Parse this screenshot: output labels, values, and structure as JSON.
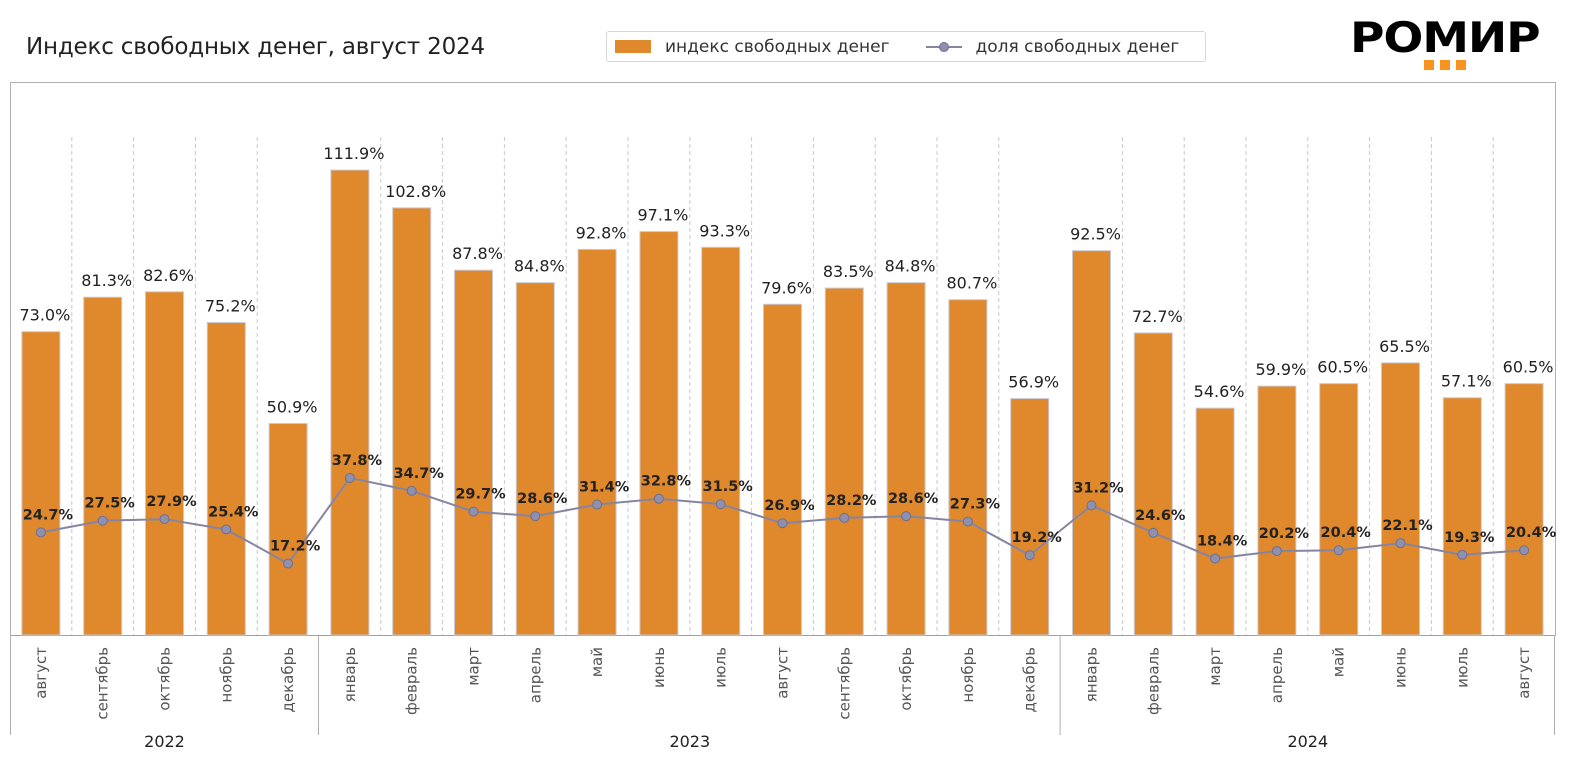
{
  "header": {
    "title": "Индекс свободных денег, август 2024",
    "logo_text": "РОМИР"
  },
  "legend": {
    "bar_label": "индекс свободных денег",
    "line_label": "доля свободных денег"
  },
  "colors": {
    "bar": "#E0882C",
    "bar_edge": "#c9c9d4",
    "line": "#8585A3",
    "marker": "#8f90ad",
    "logo_accent": "#F7931E"
  },
  "chart_data": {
    "type": "bar",
    "title": "Индекс свободных денег, август 2024",
    "xlabel": "",
    "ylabel": "",
    "legend_position": "top-center",
    "grid": "vertical dashed separators between categories",
    "categories": [
      "август",
      "сентябрь",
      "октябрь",
      "ноябрь",
      "декабрь",
      "январь",
      "февраль",
      "март",
      "апрель",
      "май",
      "июнь",
      "июль",
      "август",
      "сентябрь",
      "октябрь",
      "ноябрь",
      "декабрь",
      "январь",
      "февраль",
      "март",
      "апрель",
      "май",
      "июнь",
      "июль",
      "август"
    ],
    "year_groups": [
      {
        "label": "2022",
        "count": 5
      },
      {
        "label": "2023",
        "count": 12
      },
      {
        "label": "2024",
        "count": 8
      }
    ],
    "series": [
      {
        "name": "индекс свободных денег",
        "type": "bar",
        "values": [
          73.0,
          81.3,
          82.6,
          75.2,
          50.9,
          111.9,
          102.8,
          87.8,
          84.8,
          92.8,
          97.1,
          93.3,
          79.6,
          83.5,
          84.8,
          80.7,
          56.9,
          92.5,
          72.7,
          54.6,
          59.9,
          60.5,
          65.5,
          57.1,
          60.5
        ],
        "labels": [
          "73.0%",
          "81.3%",
          "82.6%",
          "75.2%",
          "50.9%",
          "111.9%",
          "102.8%",
          "87.8%",
          "84.8%",
          "92.8%",
          "97.1%",
          "93.3%",
          "79.6%",
          "83.5%",
          "84.8%",
          "80.7%",
          "56.9%",
          "92.5%",
          "72.7%",
          "54.6%",
          "59.9%",
          "60.5%",
          "65.5%",
          "57.1%",
          "60.5%"
        ]
      },
      {
        "name": "доля свободных денег",
        "type": "line",
        "values": [
          24.7,
          27.5,
          27.9,
          25.4,
          17.2,
          37.8,
          34.7,
          29.7,
          28.6,
          31.4,
          32.8,
          31.5,
          26.9,
          28.2,
          28.6,
          27.3,
          19.2,
          31.2,
          24.6,
          18.4,
          20.2,
          20.4,
          22.1,
          19.3,
          20.4
        ],
        "labels": [
          "24.7%",
          "27.5%",
          "27.9%",
          "25.4%",
          "17.2%",
          "37.8%",
          "34.7%",
          "29.7%",
          "28.6%",
          "31.4%",
          "32.8%",
          "31.5%",
          "26.9%",
          "28.2%",
          "28.6%",
          "27.3%",
          "19.2%",
          "31.2%",
          "24.6%",
          "18.4%",
          "20.2%",
          "20.4%",
          "22.1%",
          "19.3%",
          "20.4%"
        ]
      }
    ],
    "ylim": [
      0,
      130
    ]
  }
}
